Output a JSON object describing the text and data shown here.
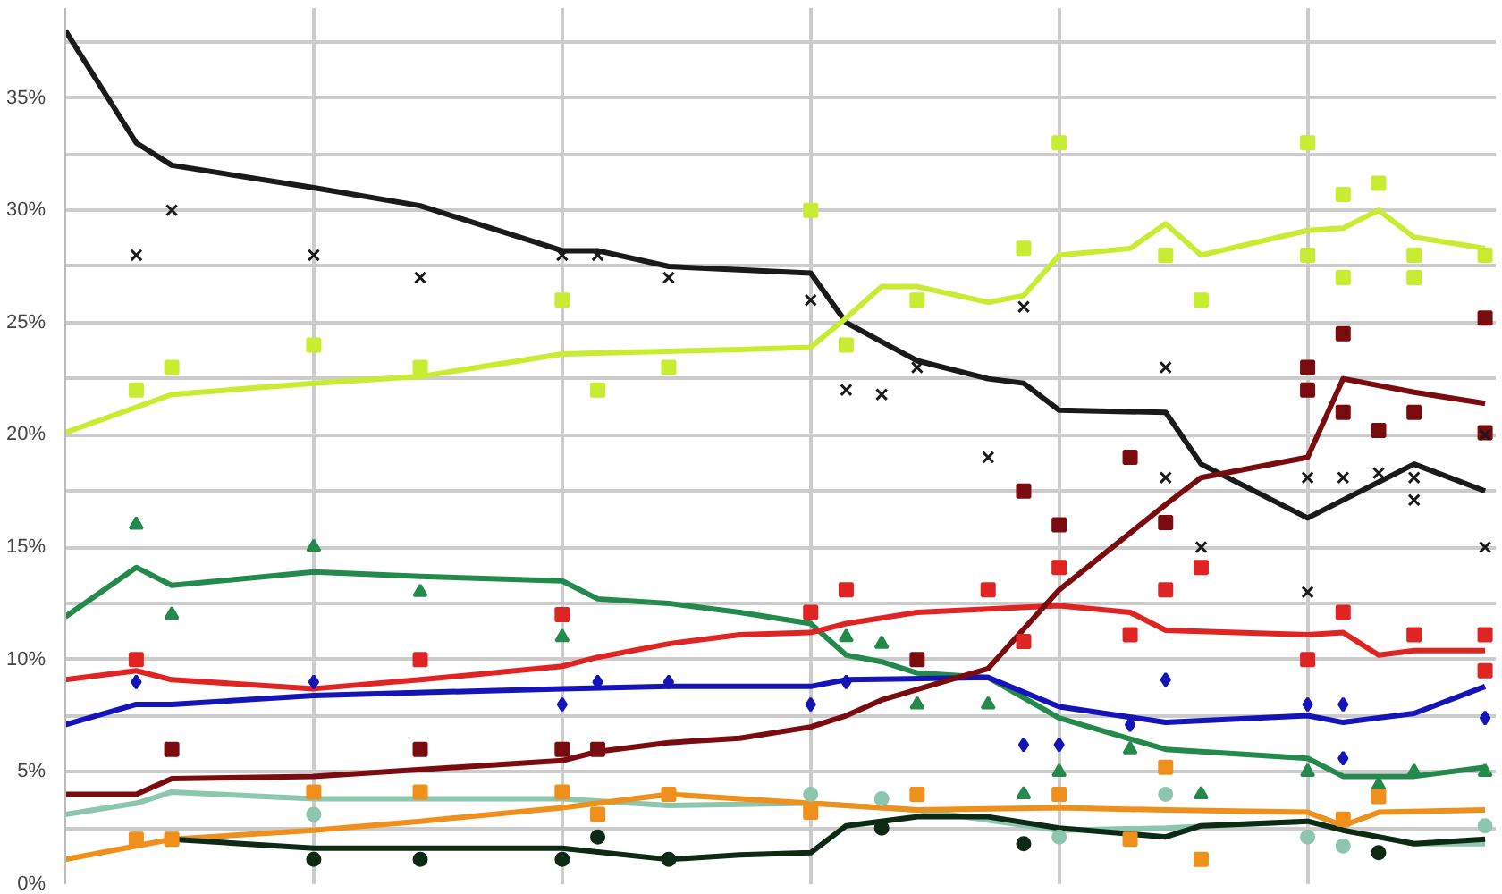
{
  "chart_data": {
    "type": "line",
    "categories": [
      null,
      null,
      null,
      null,
      null,
      null,
      null,
      null,
      null,
      null,
      null,
      null,
      null,
      null,
      null,
      null,
      null,
      null,
      null,
      null,
      null,
      null,
      null,
      null,
      null,
      null,
      null,
      null,
      null,
      null,
      null,
      null,
      null,
      null,
      null,
      null,
      null,
      null,
      null,
      null,
      null
    ],
    "ylim": [
      0,
      39
    ],
    "yticks": [
      {
        "value": 0,
        "label": "0%"
      },
      {
        "value": 2.5,
        "label": null
      },
      {
        "value": 5,
        "label": "5%"
      },
      {
        "value": 7.5,
        "label": null
      },
      {
        "value": 10,
        "label": "10%"
      },
      {
        "value": 12.5,
        "label": null
      },
      {
        "value": 15,
        "label": "15%"
      },
      {
        "value": 17.5,
        "label": null
      },
      {
        "value": 20,
        "label": "20%"
      },
      {
        "value": 22.5,
        "label": null
      },
      {
        "value": 25,
        "label": "25%"
      },
      {
        "value": 27.5,
        "label": null
      },
      {
        "value": 30,
        "label": "30%"
      },
      {
        "value": 32.5,
        "label": null
      },
      {
        "value": 35,
        "label": "35%"
      },
      {
        "value": 37.5,
        "label": null
      }
    ],
    "tick_labels": "y",
    "grid": true,
    "line_style": "solid",
    "series": [
      {
        "color": "#1a1a1a",
        "values": [
          38,
          null,
          33,
          32,
          null,
          null,
          null,
          31,
          null,
          null,
          30.2,
          null,
          null,
          null,
          28.2,
          28.2,
          null,
          27.5,
          null,
          null,
          null,
          27.2,
          25,
          null,
          23.3,
          null,
          22.5,
          22.3,
          21.1,
          null,
          null,
          21,
          18.7,
          null,
          null,
          16.3,
          null,
          null,
          18.7,
          null,
          17.5
        ]
      },
      {
        "type": "scatter",
        "marker": "cross",
        "color": "#1a1a1a",
        "values": [
          null,
          null,
          28,
          30,
          null,
          null,
          null,
          28,
          null,
          null,
          27,
          null,
          null,
          null,
          28,
          28,
          null,
          27,
          null,
          null,
          null,
          26,
          22,
          21.8,
          23,
          null,
          19,
          25.7,
          null,
          null,
          null,
          23,
          15,
          null,
          null,
          18.1,
          18.1,
          18.3,
          18.1,
          null,
          15
        ]
      },
      {
        "type": "scatter",
        "marker": "cross",
        "color": "#1a1a1a",
        "values": [
          null,
          null,
          null,
          null,
          null,
          null,
          null,
          null,
          null,
          null,
          null,
          null,
          null,
          null,
          null,
          null,
          null,
          null,
          null,
          null,
          null,
          null,
          null,
          null,
          null,
          null,
          null,
          null,
          null,
          null,
          null,
          18.1,
          null,
          null,
          null,
          13,
          null,
          null,
          17.1,
          null,
          20
        ]
      },
      {
        "color": "#c8ec32",
        "values": [
          20.1,
          null,
          null,
          21.8,
          null,
          null,
          null,
          22.3,
          null,
          null,
          22.6,
          null,
          null,
          null,
          23.6,
          null,
          null,
          null,
          null,
          23.8,
          null,
          23.9,
          25.2,
          26.6,
          26.6,
          null,
          25.9,
          26.2,
          28,
          null,
          28.3,
          29.4,
          28,
          null,
          null,
          29.1,
          29.2,
          30,
          28.8,
          null,
          28.3
        ]
      },
      {
        "type": "scatter",
        "marker": "square",
        "color": "#c8ec32",
        "values": [
          null,
          null,
          22,
          23,
          null,
          null,
          null,
          24,
          null,
          null,
          23,
          null,
          null,
          null,
          26,
          22,
          null,
          23,
          null,
          null,
          null,
          30,
          24,
          null,
          26,
          null,
          null,
          28.3,
          33,
          null,
          null,
          28,
          26,
          null,
          null,
          33,
          30.7,
          31.2,
          28,
          null,
          28
        ]
      },
      {
        "type": "scatter",
        "marker": "square",
        "color": "#c8ec32",
        "values": [
          null,
          null,
          null,
          null,
          null,
          null,
          null,
          null,
          null,
          null,
          null,
          null,
          null,
          null,
          null,
          null,
          null,
          null,
          null,
          null,
          null,
          null,
          null,
          null,
          null,
          null,
          null,
          null,
          null,
          null,
          null,
          null,
          null,
          null,
          null,
          28,
          27,
          null,
          27,
          null,
          null
        ]
      },
      {
        "color": "#248a4c",
        "values": [
          11.9,
          null,
          14.1,
          13.3,
          null,
          null,
          null,
          13.9,
          null,
          null,
          13.7,
          null,
          null,
          null,
          13.5,
          12.7,
          null,
          12.5,
          null,
          12.1,
          null,
          11.6,
          10.2,
          9.9,
          9.4,
          null,
          9.2,
          null,
          7.4,
          null,
          null,
          6,
          null,
          null,
          null,
          5.6,
          4.8,
          null,
          4.8,
          null,
          5.2
        ]
      },
      {
        "type": "scatter",
        "marker": "triangle",
        "color": "#248a4c",
        "values": [
          null,
          null,
          16,
          12,
          null,
          null,
          null,
          15,
          null,
          null,
          13,
          null,
          null,
          null,
          11,
          null,
          null,
          null,
          null,
          null,
          null,
          null,
          11,
          10.7,
          8,
          null,
          8,
          4,
          5,
          null,
          6,
          null,
          4,
          null,
          null,
          5,
          null,
          4.4,
          5,
          null,
          5
        ]
      },
      {
        "color": "#e02424",
        "values": [
          9.1,
          null,
          9.5,
          9.1,
          null,
          null,
          null,
          8.7,
          null,
          null,
          9.1,
          null,
          null,
          null,
          9.7,
          10.1,
          null,
          10.7,
          null,
          11.1,
          null,
          11.2,
          11.6,
          null,
          12.1,
          null,
          null,
          null,
          12.4,
          null,
          12.1,
          11.3,
          null,
          null,
          null,
          11.1,
          11.2,
          10.2,
          10.4,
          null,
          10.4
        ]
      },
      {
        "type": "scatter",
        "marker": "square",
        "color": "#e02424",
        "values": [
          null,
          null,
          10,
          null,
          null,
          null,
          null,
          null,
          null,
          null,
          10,
          null,
          null,
          null,
          12,
          null,
          null,
          null,
          null,
          null,
          null,
          12.1,
          13.1,
          null,
          null,
          null,
          13.1,
          10.8,
          14.1,
          null,
          11.1,
          13.1,
          14.1,
          null,
          null,
          10,
          12.1,
          null,
          11.1,
          null,
          11.1
        ]
      },
      {
        "type": "scatter",
        "marker": "square",
        "color": "#e02424",
        "values": [
          null,
          null,
          null,
          null,
          null,
          null,
          null,
          null,
          null,
          null,
          null,
          null,
          null,
          null,
          null,
          null,
          null,
          null,
          null,
          null,
          null,
          null,
          null,
          null,
          null,
          null,
          null,
          null,
          null,
          null,
          null,
          null,
          null,
          null,
          null,
          null,
          null,
          null,
          null,
          null,
          9.5
        ]
      },
      {
        "color": "#1414b8",
        "values": [
          7.1,
          null,
          8,
          8,
          null,
          null,
          null,
          8.4,
          null,
          null,
          null,
          null,
          null,
          null,
          8.7,
          null,
          null,
          8.8,
          null,
          8.8,
          null,
          8.8,
          9.1,
          null,
          null,
          null,
          9.2,
          null,
          7.9,
          null,
          null,
          7.2,
          null,
          null,
          null,
          7.5,
          7.2,
          null,
          7.6,
          null,
          8.8
        ]
      },
      {
        "type": "scatter",
        "marker": "diamond",
        "color": "#1414b8",
        "values": [
          null,
          null,
          9,
          null,
          null,
          null,
          null,
          9,
          null,
          null,
          null,
          null,
          null,
          null,
          8,
          9,
          null,
          9,
          null,
          null,
          null,
          8,
          9,
          null,
          null,
          null,
          null,
          6.2,
          6.2,
          null,
          7.1,
          9.1,
          null,
          null,
          null,
          8,
          8,
          null,
          null,
          null,
          7.4
        ]
      },
      {
        "type": "scatter",
        "marker": "diamond",
        "color": "#1414b8",
        "values": [
          null,
          null,
          null,
          null,
          null,
          null,
          null,
          null,
          null,
          null,
          null,
          null,
          null,
          null,
          null,
          null,
          null,
          null,
          null,
          null,
          null,
          null,
          null,
          null,
          null,
          null,
          null,
          null,
          null,
          null,
          null,
          null,
          null,
          null,
          null,
          null,
          5.6,
          null,
          null,
          null,
          null
        ]
      },
      {
        "color": "#7a0c10",
        "values": [
          4,
          null,
          4,
          4.7,
          null,
          null,
          null,
          4.8,
          null,
          null,
          null,
          null,
          null,
          null,
          5.5,
          5.9,
          null,
          6.3,
          null,
          6.5,
          null,
          7,
          7.5,
          8.2,
          null,
          null,
          9.6,
          null,
          13.1,
          null,
          null,
          16.9,
          18.1,
          null,
          null,
          19,
          22.5,
          null,
          21.9,
          null,
          21.4
        ]
      },
      {
        "type": "scatter",
        "marker": "square",
        "color": "#7a0c10",
        "values": [
          null,
          null,
          null,
          6,
          null,
          null,
          null,
          null,
          null,
          null,
          6,
          null,
          null,
          null,
          6,
          6,
          null,
          null,
          null,
          null,
          null,
          null,
          null,
          null,
          10,
          null,
          null,
          17.5,
          16,
          null,
          19,
          16.1,
          null,
          null,
          null,
          23,
          24.5,
          20.2,
          21,
          null,
          25.2
        ]
      },
      {
        "type": "scatter",
        "marker": "square",
        "color": "#7a0c10",
        "values": [
          null,
          null,
          null,
          null,
          null,
          null,
          null,
          null,
          null,
          null,
          null,
          null,
          null,
          null,
          null,
          null,
          null,
          null,
          null,
          null,
          null,
          null,
          null,
          null,
          null,
          null,
          null,
          null,
          null,
          null,
          null,
          null,
          null,
          null,
          null,
          22,
          21,
          null,
          null,
          null,
          20.1
        ]
      },
      {
        "color": "#8cc6ae",
        "values": [
          3.1,
          null,
          3.6,
          4.1,
          null,
          null,
          null,
          3.8,
          null,
          null,
          null,
          null,
          null,
          null,
          3.8,
          null,
          null,
          3.5,
          null,
          null,
          null,
          3.6,
          null,
          null,
          3.3,
          null,
          null,
          null,
          2.4,
          null,
          null,
          2.5,
          null,
          null,
          null,
          2.8,
          2.4,
          null,
          1.8,
          null,
          1.8
        ]
      },
      {
        "type": "scatter",
        "marker": "circle",
        "color": "#8cc6ae",
        "values": [
          null,
          null,
          null,
          null,
          null,
          null,
          null,
          3.1,
          null,
          null,
          null,
          null,
          null,
          null,
          null,
          null,
          null,
          null,
          null,
          null,
          null,
          4,
          null,
          3.8,
          null,
          null,
          null,
          null,
          2.1,
          null,
          null,
          4,
          null,
          null,
          null,
          2.1,
          1.7,
          null,
          null,
          null,
          2.6
        ]
      },
      {
        "color": "#f0901c",
        "values": [
          1.1,
          null,
          null,
          2,
          null,
          null,
          null,
          2.4,
          null,
          null,
          2.8,
          null,
          null,
          null,
          3.4,
          null,
          null,
          4,
          null,
          3.8,
          null,
          3.6,
          null,
          null,
          3.3,
          null,
          null,
          null,
          3.4,
          null,
          null,
          3.3,
          null,
          null,
          null,
          3.2,
          2.6,
          3.2,
          null,
          null,
          3.3
        ]
      },
      {
        "type": "scatter",
        "marker": "square",
        "color": "#f0901c",
        "values": [
          null,
          null,
          2,
          2,
          null,
          null,
          null,
          4.1,
          null,
          null,
          4.1,
          null,
          null,
          null,
          4.1,
          3.1,
          null,
          4,
          null,
          null,
          null,
          3.2,
          null,
          null,
          4,
          null,
          null,
          null,
          4,
          null,
          2,
          5.2,
          1.1,
          null,
          null,
          null,
          2.9,
          3.9,
          null,
          null,
          null
        ]
      },
      {
        "color": "#0c2a14",
        "values": [
          null,
          null,
          null,
          2,
          null,
          null,
          null,
          1.6,
          null,
          null,
          null,
          null,
          null,
          null,
          1.6,
          null,
          null,
          1.1,
          null,
          1.3,
          null,
          1.4,
          2.6,
          null,
          3,
          null,
          3,
          null,
          2.5,
          null,
          null,
          2.1,
          2.6,
          null,
          null,
          2.8,
          2.4,
          null,
          1.8,
          null,
          2
        ]
      },
      {
        "type": "scatter",
        "marker": "circle",
        "color": "#0c2a14",
        "values": [
          null,
          null,
          null,
          null,
          null,
          null,
          null,
          1.1,
          null,
          null,
          1.1,
          null,
          null,
          null,
          1.1,
          2.1,
          null,
          1.1,
          null,
          null,
          null,
          null,
          null,
          2.5,
          null,
          null,
          null,
          1.8,
          null,
          null,
          null,
          null,
          null,
          null,
          null,
          null,
          null,
          1.4,
          null,
          null,
          null
        ]
      }
    ]
  }
}
